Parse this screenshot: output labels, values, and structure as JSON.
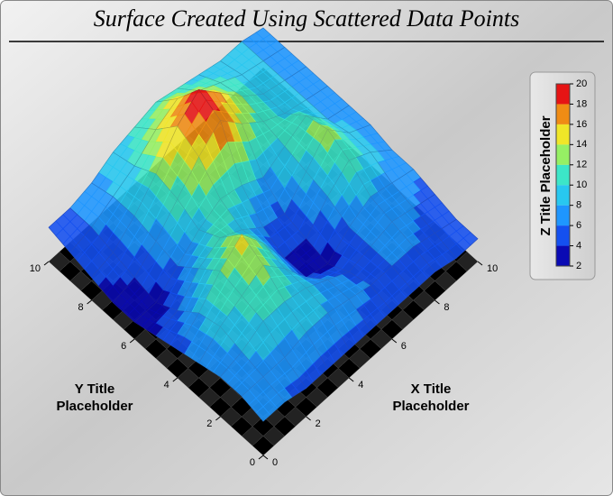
{
  "chart_data": {
    "type": "surface3d",
    "title": "Surface Created Using Scattered Data Points",
    "xlabel": "X Title Placeholder",
    "ylabel": "Y Title Placeholder",
    "zlabel": "Z Title Placeholder",
    "xlim": [
      0,
      10
    ],
    "xticks": [
      0,
      2,
      4,
      6,
      8,
      10
    ],
    "ylim": [
      0,
      10
    ],
    "yticks": [
      0,
      2,
      4,
      6,
      8,
      10
    ],
    "zlim": [
      2,
      20
    ],
    "zticks": [
      2,
      4,
      6,
      8,
      10,
      12,
      14,
      16,
      18,
      20
    ],
    "colors": [
      "#0a0ab4",
      "#1450f0",
      "#1e96ff",
      "#28c8f0",
      "#3ce6c8",
      "#96f064",
      "#f0e628",
      "#f08c14",
      "#e61414"
    ],
    "x": [
      0,
      1,
      2,
      3,
      4,
      5,
      6,
      7,
      8,
      9,
      10
    ],
    "y": [
      0,
      1,
      2,
      3,
      4,
      5,
      6,
      7,
      8,
      9,
      10
    ],
    "z": [
      [
        6,
        6,
        5,
        5,
        5,
        5,
        5,
        5,
        5,
        4,
        4
      ],
      [
        7,
        7,
        7,
        8,
        8,
        7,
        6,
        6,
        6,
        5,
        4
      ],
      [
        7,
        8,
        10,
        10,
        9,
        7,
        5,
        6,
        7,
        6,
        5
      ],
      [
        6,
        9,
        11,
        13,
        9,
        4,
        3,
        6,
        8,
        7,
        6
      ],
      [
        5,
        8,
        12,
        15,
        10,
        4,
        4,
        8,
        11,
        9,
        6
      ],
      [
        4,
        5,
        9,
        11,
        9,
        6,
        5,
        9,
        13,
        9,
        7
      ],
      [
        3,
        3,
        6,
        9,
        11,
        10,
        8,
        10,
        12,
        8,
        7
      ],
      [
        3,
        4,
        7,
        11,
        15,
        18,
        14,
        11,
        9,
        8,
        7
      ],
      [
        4,
        5,
        8,
        12,
        17,
        20,
        16,
        12,
        9,
        8,
        7
      ],
      [
        5,
        6,
        8,
        10,
        13,
        15,
        13,
        11,
        9,
        8,
        7
      ],
      [
        6,
        6,
        7,
        9,
        10,
        11,
        10,
        9,
        8,
        8,
        7
      ]
    ]
  }
}
